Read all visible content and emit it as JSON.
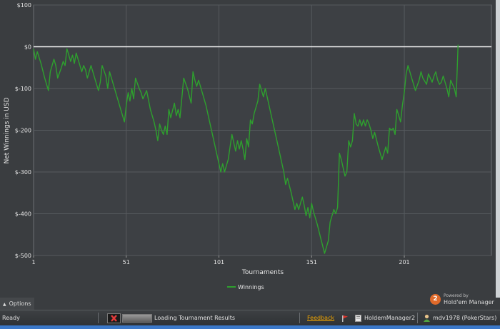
{
  "chart_data": {
    "type": "line",
    "xlabel": "Tournaments",
    "ylabel": "Net Winnings in USD",
    "xlim": [
      1,
      248
    ],
    "ylim": [
      -500,
      100
    ],
    "x_ticks": [
      1,
      51,
      101,
      151,
      201
    ],
    "x_tick_labels": [
      "1",
      "51",
      "101",
      "151",
      "201"
    ],
    "y_ticks": [
      100,
      0,
      -100,
      -200,
      -300,
      -400,
      -500
    ],
    "y_tick_labels": [
      "$100",
      "$0",
      "$-100",
      "$-200",
      "$-300",
      "$-400",
      "$-500"
    ],
    "zero_line": true,
    "grid": true,
    "legend": {
      "position": "bottom-center",
      "entries": [
        "Winnings"
      ]
    },
    "series": [
      {
        "name": "Winnings",
        "color": "#2ea02e",
        "points": [
          [
            1,
            -5
          ],
          [
            2,
            -30
          ],
          [
            3,
            -12
          ],
          [
            5,
            -40
          ],
          [
            7,
            -75
          ],
          [
            9,
            -105
          ],
          [
            10,
            -60
          ],
          [
            12,
            -30
          ],
          [
            13,
            -45
          ],
          [
            14,
            -75
          ],
          [
            16,
            -50
          ],
          [
            17,
            -35
          ],
          [
            18,
            -45
          ],
          [
            19,
            -5
          ],
          [
            20,
            -20
          ],
          [
            21,
            -35
          ],
          [
            22,
            -20
          ],
          [
            23,
            -40
          ],
          [
            24,
            -15
          ],
          [
            26,
            -45
          ],
          [
            27,
            -60
          ],
          [
            28,
            -45
          ],
          [
            29,
            -55
          ],
          [
            30,
            -75
          ],
          [
            32,
            -45
          ],
          [
            34,
            -75
          ],
          [
            36,
            -105
          ],
          [
            37,
            -85
          ],
          [
            38,
            -45
          ],
          [
            40,
            -70
          ],
          [
            41,
            -100
          ],
          [
            42,
            -60
          ],
          [
            44,
            -90
          ],
          [
            46,
            -120
          ],
          [
            48,
            -150
          ],
          [
            50,
            -180
          ],
          [
            51,
            -140
          ],
          [
            52,
            -110
          ],
          [
            53,
            -130
          ],
          [
            54,
            -100
          ],
          [
            55,
            -125
          ],
          [
            56,
            -75
          ],
          [
            58,
            -100
          ],
          [
            59,
            -110
          ],
          [
            60,
            -125
          ],
          [
            62,
            -105
          ],
          [
            64,
            -150
          ],
          [
            66,
            -180
          ],
          [
            67,
            -200
          ],
          [
            68,
            -225
          ],
          [
            69,
            -185
          ],
          [
            70,
            -200
          ],
          [
            71,
            -210
          ],
          [
            72,
            -190
          ],
          [
            73,
            -210
          ],
          [
            74,
            -150
          ],
          [
            75,
            -170
          ],
          [
            77,
            -135
          ],
          [
            78,
            -165
          ],
          [
            79,
            -150
          ],
          [
            80,
            -170
          ],
          [
            82,
            -75
          ],
          [
            84,
            -100
          ],
          [
            86,
            -135
          ],
          [
            87,
            -60
          ],
          [
            88,
            -80
          ],
          [
            89,
            -95
          ],
          [
            90,
            -80
          ],
          [
            92,
            -110
          ],
          [
            94,
            -140
          ],
          [
            96,
            -180
          ],
          [
            98,
            -220
          ],
          [
            100,
            -260
          ],
          [
            102,
            -300
          ],
          [
            103,
            -280
          ],
          [
            104,
            -300
          ],
          [
            106,
            -270
          ],
          [
            107,
            -240
          ],
          [
            108,
            -210
          ],
          [
            109,
            -230
          ],
          [
            110,
            -250
          ],
          [
            111,
            -225
          ],
          [
            112,
            -245
          ],
          [
            113,
            -225
          ],
          [
            114,
            -245
          ],
          [
            115,
            -270
          ],
          [
            116,
            -220
          ],
          [
            117,
            -240
          ],
          [
            118,
            -175
          ],
          [
            119,
            -185
          ],
          [
            120,
            -160
          ],
          [
            121,
            -145
          ],
          [
            122,
            -130
          ],
          [
            123,
            -90
          ],
          [
            124,
            -105
          ],
          [
            125,
            -120
          ],
          [
            126,
            -100
          ],
          [
            128,
            -140
          ],
          [
            130,
            -180
          ],
          [
            132,
            -220
          ],
          [
            134,
            -260
          ],
          [
            136,
            -300
          ],
          [
            137,
            -330
          ],
          [
            138,
            -315
          ],
          [
            140,
            -350
          ],
          [
            142,
            -390
          ],
          [
            143,
            -375
          ],
          [
            144,
            -390
          ],
          [
            146,
            -360
          ],
          [
            147,
            -380
          ],
          [
            148,
            -405
          ],
          [
            149,
            -385
          ],
          [
            150,
            -410
          ],
          [
            151,
            -375
          ],
          [
            152,
            -395
          ],
          [
            154,
            -425
          ],
          [
            156,
            -460
          ],
          [
            158,
            -495
          ],
          [
            159,
            -480
          ],
          [
            160,
            -465
          ],
          [
            161,
            -420
          ],
          [
            162,
            -405
          ],
          [
            163,
            -390
          ],
          [
            164,
            -400
          ],
          [
            165,
            -385
          ],
          [
            166,
            -255
          ],
          [
            167,
            -270
          ],
          [
            168,
            -290
          ],
          [
            169,
            -310
          ],
          [
            170,
            -300
          ],
          [
            171,
            -225
          ],
          [
            172,
            -240
          ],
          [
            173,
            -225
          ],
          [
            174,
            -160
          ],
          [
            175,
            -185
          ],
          [
            176,
            -190
          ],
          [
            177,
            -175
          ],
          [
            178,
            -190
          ],
          [
            179,
            -175
          ],
          [
            180,
            -190
          ],
          [
            181,
            -175
          ],
          [
            182,
            -185
          ],
          [
            183,
            -200
          ],
          [
            184,
            -220
          ],
          [
            185,
            -205
          ],
          [
            187,
            -240
          ],
          [
            189,
            -270
          ],
          [
            191,
            -240
          ],
          [
            192,
            -255
          ],
          [
            193,
            -195
          ],
          [
            194,
            -200
          ],
          [
            195,
            -195
          ],
          [
            196,
            -210
          ],
          [
            197,
            -150
          ],
          [
            198,
            -165
          ],
          [
            199,
            -180
          ],
          [
            200,
            -140
          ],
          [
            201,
            -110
          ],
          [
            202,
            -65
          ],
          [
            203,
            -45
          ],
          [
            205,
            -75
          ],
          [
            207,
            -105
          ],
          [
            209,
            -80
          ],
          [
            210,
            -60
          ],
          [
            211,
            -75
          ],
          [
            213,
            -90
          ],
          [
            214,
            -65
          ],
          [
            216,
            -85
          ],
          [
            217,
            -70
          ],
          [
            218,
            -60
          ],
          [
            219,
            -80
          ],
          [
            220,
            -90
          ],
          [
            221,
            -85
          ],
          [
            222,
            -70
          ],
          [
            223,
            -85
          ],
          [
            224,
            -100
          ],
          [
            225,
            -120
          ],
          [
            226,
            -80
          ],
          [
            227,
            -90
          ],
          [
            228,
            -100
          ],
          [
            229,
            -120
          ],
          [
            230,
            5
          ]
        ]
      }
    ]
  },
  "options": {
    "label": "Options"
  },
  "logo": {
    "badge": "2",
    "powered": "Powered by",
    "brand": "Hold'em Manager"
  },
  "status": {
    "ready": "Ready",
    "loading": "Loading Tournament Results",
    "feedback": "Feedback",
    "app": "HoldemManager2",
    "user": "mdv1978 (PokerStars)"
  }
}
